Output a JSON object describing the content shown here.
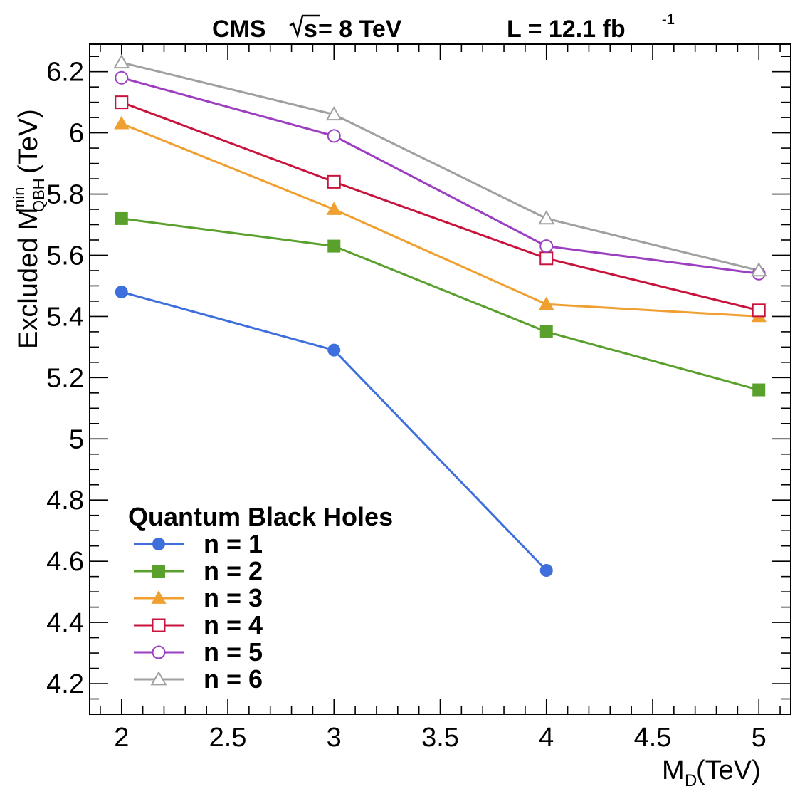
{
  "chart_data": {
    "type": "line",
    "title_left": "CMS",
    "title_sqrt": "s",
    "title_energy": " = 8 TeV",
    "title_lumi": "L = 12.1 fb",
    "title_lumi_sup": "-1",
    "xlabel_main": "M",
    "xlabel_sub": "D",
    "xlabel_unit": " (TeV)",
    "ylabel_main": "Excluded M",
    "ylabel_sup": "min",
    "ylabel_sub": "QBH",
    "ylabel_unit": " (TeV)",
    "xlim": [
      1.85,
      5.15
    ],
    "ylim": [
      4.1,
      6.29
    ],
    "x_ticks": [
      "2",
      "2.5",
      "3",
      "3.5",
      "4",
      "4.5",
      "5"
    ],
    "y_ticks": [
      "4.2",
      "4.4",
      "4.6",
      "4.8",
      "5",
      "5.2",
      "5.4",
      "5.6",
      "5.8",
      "6",
      "6.2"
    ],
    "legend_title": "Quantum Black Holes",
    "legend_position": "bottom-left",
    "grid": false,
    "series": [
      {
        "name": "n = 1",
        "color": "#3f6fdc",
        "marker": "filled-circle",
        "x": [
          2,
          3,
          4
        ],
        "y": [
          5.48,
          5.29,
          4.57
        ]
      },
      {
        "name": "n = 2",
        "color": "#5aa02c",
        "marker": "filled-square",
        "x": [
          2,
          3,
          4,
          5
        ],
        "y": [
          5.72,
          5.63,
          5.35,
          5.16
        ]
      },
      {
        "name": "n = 3",
        "color": "#f0a030",
        "marker": "filled-triangle",
        "x": [
          2,
          3,
          4,
          5
        ],
        "y": [
          6.03,
          5.75,
          5.44,
          5.4
        ]
      },
      {
        "name": "n = 4",
        "color": "#c8143c",
        "marker": "open-square",
        "x": [
          2,
          3,
          4,
          5
        ],
        "y": [
          6.1,
          5.84,
          5.59,
          5.42
        ]
      },
      {
        "name": "n = 5",
        "color": "#9b3fc0",
        "marker": "open-circle",
        "x": [
          2,
          3,
          4,
          5
        ],
        "y": [
          6.18,
          5.99,
          5.63,
          5.54
        ]
      },
      {
        "name": "n = 6",
        "color": "#a0a0a0",
        "marker": "open-triangle",
        "x": [
          2,
          3,
          4,
          5
        ],
        "y": [
          6.23,
          6.06,
          5.72,
          5.55
        ]
      }
    ]
  }
}
